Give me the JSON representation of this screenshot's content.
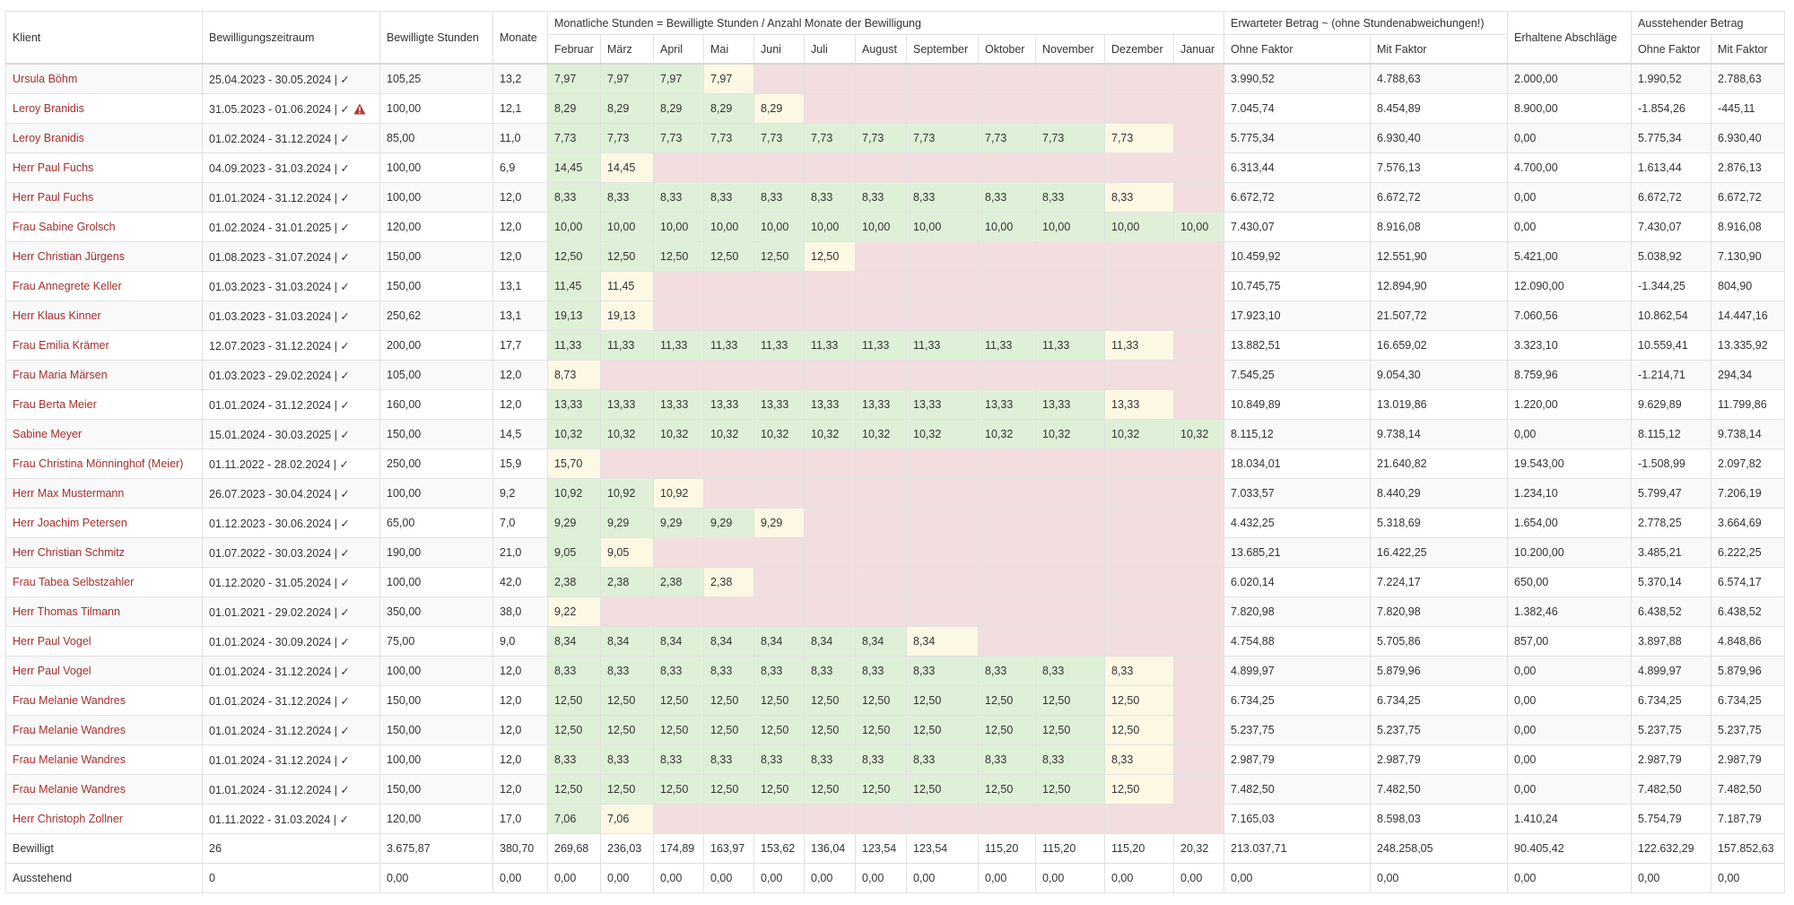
{
  "table": {
    "header_groups": {
      "monthly": "Monatliche Stunden = Bewilligte Stunden / Anzahl Monate der Bewilligung",
      "expected": "Erwarteter Betrag ~ (ohne Stundenabweichungen!)",
      "outstanding": "Ausstehender Betrag"
    },
    "headers": [
      "Klient",
      "Bewilligungszeitraum",
      "Bewilligte Stunden",
      "Monate",
      "Februar",
      "März",
      "April",
      "Mai",
      "Juni",
      "Juli",
      "August",
      "September",
      "Oktober",
      "November",
      "Dezember",
      "Januar",
      "Ohne Faktor",
      "Mit Faktor",
      "Erhaltene Abschläge",
      "Ohne Faktor",
      "Mit Faktor"
    ],
    "rows": [
      {
        "cells": [
          "Ursula Böhm",
          "25.04.2023 - 30.05.2024 | ✓",
          "105,25",
          "13,2",
          "7,97",
          "7,97",
          "7,97",
          "7,97",
          null,
          null,
          null,
          null,
          null,
          null,
          null,
          null,
          "3.990,52",
          "4.788,63",
          "2.000,00",
          "1.990,52",
          "2.788,63"
        ]
      },
      {
        "cells": [
          "Leroy Branidis",
          "31.05.2023 - 01.06.2024 | ✓",
          "100,00",
          "12,1",
          "8,29",
          "8,29",
          "8,29",
          "8,29",
          "8,29",
          null,
          null,
          null,
          null,
          null,
          null,
          null,
          "7.045,74",
          "8.454,89",
          "8.900,00",
          "-1.854,26",
          "-445,11"
        ],
        "warning": true
      },
      {
        "cells": [
          "Leroy Branidis",
          "01.02.2024 - 31.12.2024 | ✓",
          "85,00",
          "11,0",
          "7,73",
          "7,73",
          "7,73",
          "7,73",
          "7,73",
          "7,73",
          "7,73",
          "7,73",
          "7,73",
          "7,73",
          "7,73",
          null,
          "5.775,34",
          "6.930,40",
          "0,00",
          "5.775,34",
          "6.930,40"
        ]
      },
      {
        "cells": [
          "Herr Paul Fuchs",
          "04.09.2023 - 31.03.2024 | ✓",
          "100,00",
          "6,9",
          "14,45",
          "14,45",
          null,
          null,
          null,
          null,
          null,
          null,
          null,
          null,
          null,
          null,
          "6.313,44",
          "7.576,13",
          "4.700,00",
          "1.613,44",
          "2.876,13"
        ]
      },
      {
        "cells": [
          "Herr Paul Fuchs",
          "01.01.2024 - 31.12.2024 | ✓",
          "100,00",
          "12,0",
          "8,33",
          "8,33",
          "8,33",
          "8,33",
          "8,33",
          "8,33",
          "8,33",
          "8,33",
          "8,33",
          "8,33",
          "8,33",
          null,
          "6.672,72",
          "6.672,72",
          "0,00",
          "6.672,72",
          "6.672,72"
        ]
      },
      {
        "cells": [
          "Frau Sabine Grolsch",
          "01.02.2024 - 31.01.2025 | ✓",
          "120,00",
          "12,0",
          "10,00",
          "10,00",
          "10,00",
          "10,00",
          "10,00",
          "10,00",
          "10,00",
          "10,00",
          "10,00",
          "10,00",
          "10,00",
          "10,00",
          "7.430,07",
          "8.916,08",
          "0,00",
          "7.430,07",
          "8.916,08"
        ]
      },
      {
        "cells": [
          "Herr Christian Jürgens",
          "01.08.2023 - 31.07.2024 | ✓",
          "150,00",
          "12,0",
          "12,50",
          "12,50",
          "12,50",
          "12,50",
          "12,50",
          "12,50",
          null,
          null,
          null,
          null,
          null,
          null,
          "10.459,92",
          "12.551,90",
          "5.421,00",
          "5.038,92",
          "7.130,90"
        ]
      },
      {
        "cells": [
          "Frau Annegrete Keller",
          "01.03.2023 - 31.03.2024 | ✓",
          "150,00",
          "13,1",
          "11,45",
          "11,45",
          null,
          null,
          null,
          null,
          null,
          null,
          null,
          null,
          null,
          null,
          "10.745,75",
          "12.894,90",
          "12.090,00",
          "-1.344,25",
          "804,90"
        ]
      },
      {
        "cells": [
          "Herr Klaus Kinner",
          "01.03.2023 - 31.03.2024 | ✓",
          "250,62",
          "13,1",
          "19,13",
          "19,13",
          null,
          null,
          null,
          null,
          null,
          null,
          null,
          null,
          null,
          null,
          "17.923,10",
          "21.507,72",
          "7.060,56",
          "10.862,54",
          "14.447,16"
        ]
      },
      {
        "cells": [
          "Frau Emilia Krämer",
          "12.07.2023 - 31.12.2024 | ✓",
          "200,00",
          "17,7",
          "11,33",
          "11,33",
          "11,33",
          "11,33",
          "11,33",
          "11,33",
          "11,33",
          "11,33",
          "11,33",
          "11,33",
          "11,33",
          null,
          "13.882,51",
          "16.659,02",
          "3.323,10",
          "10.559,41",
          "13.335,92"
        ]
      },
      {
        "cells": [
          "Frau Maria Märsen",
          "01.03.2023 - 29.02.2024 | ✓",
          "105,00",
          "12,0",
          "8,73",
          null,
          null,
          null,
          null,
          null,
          null,
          null,
          null,
          null,
          null,
          null,
          "7.545,25",
          "9.054,30",
          "8.759,96",
          "-1.214,71",
          "294,34"
        ]
      },
      {
        "cells": [
          "Frau Berta Meier",
          "01.01.2024 - 31.12.2024 | ✓",
          "160,00",
          "12,0",
          "13,33",
          "13,33",
          "13,33",
          "13,33",
          "13,33",
          "13,33",
          "13,33",
          "13,33",
          "13,33",
          "13,33",
          "13,33",
          null,
          "10.849,89",
          "13.019,86",
          "1.220,00",
          "9.629,89",
          "11.799,86"
        ]
      },
      {
        "cells": [
          "Sabine Meyer",
          "15.01.2024 - 30.03.2025 | ✓",
          "150,00",
          "14,5",
          "10,32",
          "10,32",
          "10,32",
          "10,32",
          "10,32",
          "10,32",
          "10,32",
          "10,32",
          "10,32",
          "10,32",
          "10,32",
          "10,32",
          "8.115,12",
          "9.738,14",
          "0,00",
          "8.115,12",
          "9.738,14"
        ]
      },
      {
        "cells": [
          "Frau Christina Mönninghof (Meier)",
          "01.11.2022 - 28.02.2024 | ✓",
          "250,00",
          "15,9",
          "15,70",
          null,
          null,
          null,
          null,
          null,
          null,
          null,
          null,
          null,
          null,
          null,
          "18.034,01",
          "21.640,82",
          "19.543,00",
          "-1.508,99",
          "2.097,82"
        ]
      },
      {
        "cells": [
          "Herr Max Mustermann",
          "26.07.2023 - 30.04.2024 | ✓",
          "100,00",
          "9,2",
          "10,92",
          "10,92",
          "10,92",
          null,
          null,
          null,
          null,
          null,
          null,
          null,
          null,
          null,
          "7.033,57",
          "8.440,29",
          "1.234,10",
          "5.799,47",
          "7.206,19"
        ]
      },
      {
        "cells": [
          "Herr Joachim Petersen",
          "01.12.2023 - 30.06.2024 | ✓",
          "65,00",
          "7,0",
          "9,29",
          "9,29",
          "9,29",
          "9,29",
          "9,29",
          null,
          null,
          null,
          null,
          null,
          null,
          null,
          "4.432,25",
          "5.318,69",
          "1.654,00",
          "2.778,25",
          "3.664,69"
        ]
      },
      {
        "cells": [
          "Herr Christian Schmitz",
          "01.07.2022 - 30.03.2024 | ✓",
          "190,00",
          "21,0",
          "9,05",
          "9,05",
          null,
          null,
          null,
          null,
          null,
          null,
          null,
          null,
          null,
          null,
          "13.685,21",
          "16.422,25",
          "10.200,00",
          "3.485,21",
          "6.222,25"
        ]
      },
      {
        "cells": [
          "Frau Tabea Selbstzahler",
          "01.12.2020 - 31.05.2024 | ✓",
          "100,00",
          "42,0",
          "2,38",
          "2,38",
          "2,38",
          "2,38",
          null,
          null,
          null,
          null,
          null,
          null,
          null,
          null,
          "6.020,14",
          "7.224,17",
          "650,00",
          "5.370,14",
          "6.574,17"
        ]
      },
      {
        "cells": [
          "Herr Thomas Tilmann",
          "01.01.2021 - 29.02.2024 | ✓",
          "350,00",
          "38,0",
          "9,22",
          null,
          null,
          null,
          null,
          null,
          null,
          null,
          null,
          null,
          null,
          null,
          "7.820,98",
          "7.820,98",
          "1.382,46",
          "6.438,52",
          "6.438,52"
        ]
      },
      {
        "cells": [
          "Herr Paul Vogel",
          "01.01.2024 - 30.09.2024 | ✓",
          "75,00",
          "9,0",
          "8,34",
          "8,34",
          "8,34",
          "8,34",
          "8,34",
          "8,34",
          "8,34",
          "8,34",
          null,
          null,
          null,
          null,
          "4.754,88",
          "5.705,86",
          "857,00",
          "3.897,88",
          "4.848,86"
        ]
      },
      {
        "cells": [
          "Herr Paul Vogel",
          "01.01.2024 - 31.12.2024 | ✓",
          "100,00",
          "12,0",
          "8,33",
          "8,33",
          "8,33",
          "8,33",
          "8,33",
          "8,33",
          "8,33",
          "8,33",
          "8,33",
          "8,33",
          "8,33",
          null,
          "4.899,97",
          "5.879,96",
          "0,00",
          "4.899,97",
          "5.879,96"
        ]
      },
      {
        "cells": [
          "Frau Melanie Wandres",
          "01.01.2024 - 31.12.2024 | ✓",
          "150,00",
          "12,0",
          "12,50",
          "12,50",
          "12,50",
          "12,50",
          "12,50",
          "12,50",
          "12,50",
          "12,50",
          "12,50",
          "12,50",
          "12,50",
          null,
          "6.734,25",
          "6.734,25",
          "0,00",
          "6.734,25",
          "6.734,25"
        ]
      },
      {
        "cells": [
          "Frau Melanie Wandres",
          "01.01.2024 - 31.12.2024 | ✓",
          "150,00",
          "12,0",
          "12,50",
          "12,50",
          "12,50",
          "12,50",
          "12,50",
          "12,50",
          "12,50",
          "12,50",
          "12,50",
          "12,50",
          "12,50",
          null,
          "5.237,75",
          "5.237,75",
          "0,00",
          "5.237,75",
          "5.237,75"
        ]
      },
      {
        "cells": [
          "Frau Melanie Wandres",
          "01.01.2024 - 31.12.2024 | ✓",
          "100,00",
          "12,0",
          "8,33",
          "8,33",
          "8,33",
          "8,33",
          "8,33",
          "8,33",
          "8,33",
          "8,33",
          "8,33",
          "8,33",
          "8,33",
          null,
          "2.987,79",
          "2.987,79",
          "0,00",
          "2.987,79",
          "2.987,79"
        ]
      },
      {
        "cells": [
          "Frau Melanie Wandres",
          "01.01.2024 - 31.12.2024 | ✓",
          "150,00",
          "12,0",
          "12,50",
          "12,50",
          "12,50",
          "12,50",
          "12,50",
          "12,50",
          "12,50",
          "12,50",
          "12,50",
          "12,50",
          "12,50",
          null,
          "7.482,50",
          "7.482,50",
          "0,00",
          "7.482,50",
          "7.482,50"
        ]
      },
      {
        "cells": [
          "Herr Christoph Zollner",
          "01.11.2022 - 31.03.2024 | ✓",
          "120,00",
          "17,0",
          "7,06",
          "7,06",
          null,
          null,
          null,
          null,
          null,
          null,
          null,
          null,
          null,
          null,
          "7.165,03",
          "8.598,03",
          "1.410,24",
          "5.754,79",
          "7.187,79"
        ]
      }
    ],
    "totals": [
      [
        "Bewilligt",
        "26",
        "3.675,87",
        "380,70",
        "269,68",
        "236,03",
        "174,89",
        "163,97",
        "153,62",
        "136,04",
        "123,54",
        "123,54",
        "115,20",
        "115,20",
        "115,20",
        "20,32",
        "213.037,71",
        "248.258,05",
        "90.405,42",
        "122.632,29",
        "157.852,63"
      ],
      [
        "Ausstehend",
        "0",
        "0,00",
        "0,00",
        "0,00",
        "0,00",
        "0,00",
        "0,00",
        "0,00",
        "0,00",
        "0,00",
        "0,00",
        "0,00",
        "0,00",
        "0,00",
        "0,00",
        "0,00",
        "0,00",
        "0,00",
        "0,00",
        "0,00"
      ]
    ]
  }
}
